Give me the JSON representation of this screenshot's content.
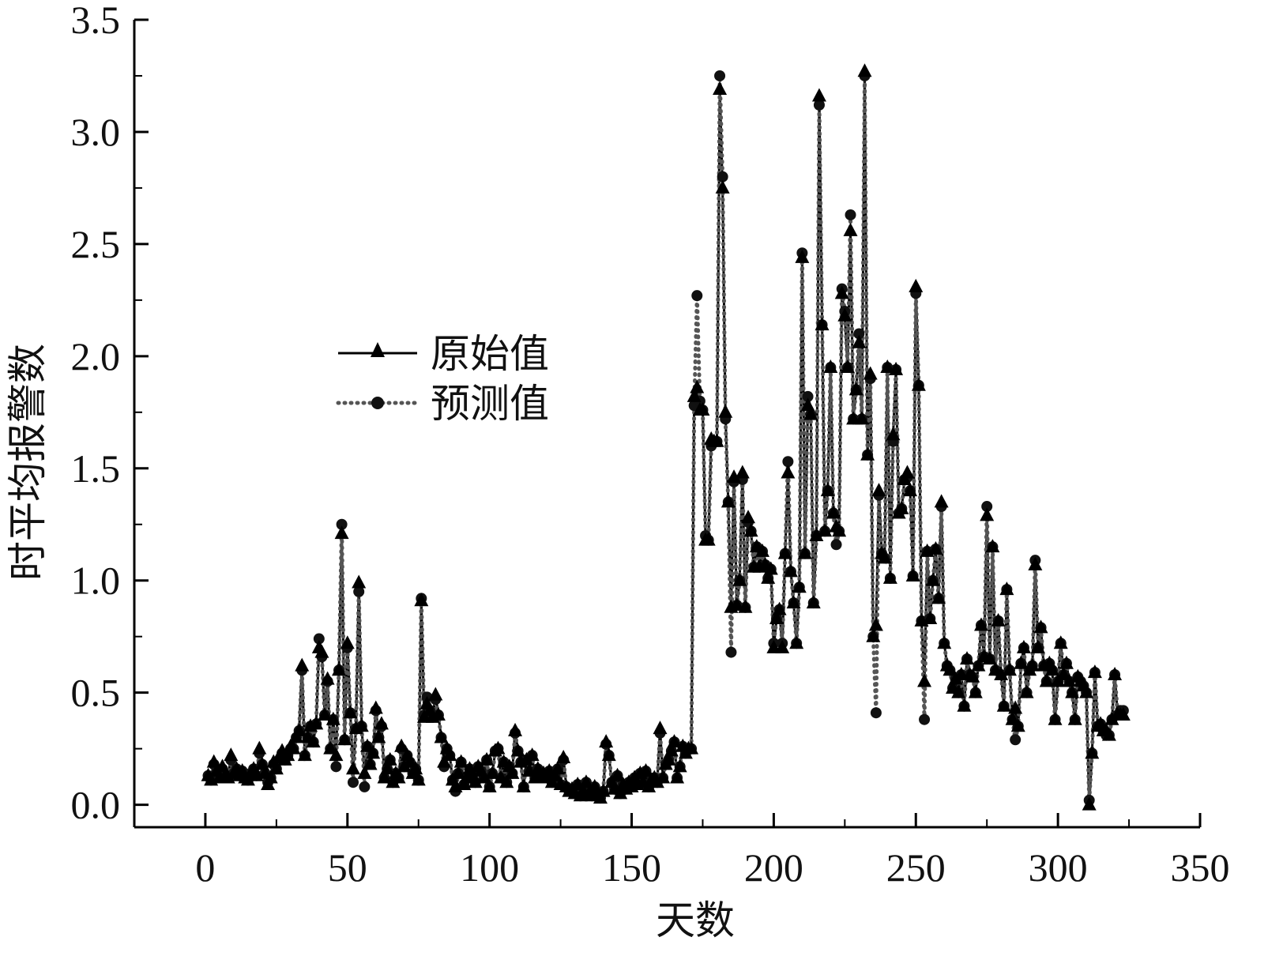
{
  "chart_data": {
    "type": "line",
    "title": "",
    "xlabel": "天数",
    "ylabel": "时平均报警数",
    "xlim": [
      -25,
      350
    ],
    "ylim": [
      -0.1,
      3.5
    ],
    "xticks": [
      0,
      50,
      100,
      150,
      200,
      250,
      300,
      350
    ],
    "xtick_labels": [
      "0",
      "50",
      "100",
      "150",
      "200",
      "250",
      "300",
      "350"
    ],
    "yticks": [
      0,
      0.5,
      1,
      1.5,
      2,
      2.5,
      3,
      3.5
    ],
    "ytick_labels": [
      "0.0",
      "0.5",
      "1.0",
      "1.5",
      "2.0",
      "2.5",
      "3.0",
      "3.5"
    ],
    "grid": false,
    "legend_position": "center-left",
    "colors": {
      "original": "#000000",
      "predicted": "#555555"
    },
    "series": [
      {
        "name": "原始值",
        "style": "solid line, triangle markers",
        "values": [
          0.13,
          0.11,
          0.19,
          0.15,
          0.12,
          0.17,
          0.13,
          0.12,
          0.22,
          0.14,
          0.16,
          0.13,
          0.15,
          0.12,
          0.11,
          0.14,
          0.16,
          0.13,
          0.25,
          0.18,
          0.14,
          0.09,
          0.12,
          0.19,
          0.16,
          0.21,
          0.24,
          0.2,
          0.22,
          0.26,
          0.25,
          0.3,
          0.33,
          0.62,
          0.22,
          0.3,
          0.35,
          0.28,
          0.36,
          0.7,
          0.68,
          0.4,
          0.56,
          0.25,
          0.38,
          0.22,
          0.6,
          1.21,
          0.29,
          0.72,
          0.41,
          0.16,
          0.34,
          0.99,
          0.35,
          0.14,
          0.26,
          0.18,
          0.23,
          0.43,
          0.3,
          0.36,
          0.12,
          0.16,
          0.2,
          0.1,
          0.14,
          0.12,
          0.26,
          0.17,
          0.22,
          0.19,
          0.14,
          0.16,
          0.11,
          0.91,
          0.39,
          0.45,
          0.42,
          0.39,
          0.49,
          0.4,
          0.3,
          0.19,
          0.25,
          0.22,
          0.11,
          0.08,
          0.14,
          0.19,
          0.09,
          0.12,
          0.16,
          0.13,
          0.1,
          0.17,
          0.15,
          0.12,
          0.2,
          0.08,
          0.14,
          0.24,
          0.25,
          0.12,
          0.19,
          0.1,
          0.17,
          0.14,
          0.33,
          0.24,
          0.19,
          0.08,
          0.2,
          0.15,
          0.22,
          0.12,
          0.16,
          0.13,
          0.14,
          0.12,
          0.15,
          0.1,
          0.13,
          0.16,
          0.09,
          0.21,
          0.08,
          0.06,
          0.07,
          0.05,
          0.09,
          0.04,
          0.06,
          0.1,
          0.05,
          0.04,
          0.08,
          0.05,
          0.03,
          0.06,
          0.28,
          0.22,
          0.1,
          0.07,
          0.13,
          0.05,
          0.09,
          0.07,
          0.1,
          0.08,
          0.12,
          0.09,
          0.14,
          0.1,
          0.15,
          0.08,
          0.11,
          0.12,
          0.1,
          0.34,
          0.12,
          0.18,
          0.2,
          0.24,
          0.28,
          0.12,
          0.17,
          0.26,
          0.23,
          0.25,
          0.25,
          1.82,
          1.86,
          1.76,
          1.76,
          1.18,
          1.18,
          1.63,
          1.62,
          1.62,
          3.19,
          2.75,
          1.75,
          1.35,
          0.88,
          1.46,
          0.89,
          1.0,
          1.48,
          0.88,
          1.28,
          1.22,
          1.06,
          1.15,
          1.06,
          1.13,
          1.07,
          1.01,
          1.05,
          0.7,
          0.83,
          0.87,
          0.7,
          1.12,
          1.48,
          1.04,
          0.9,
          0.72,
          0.97,
          2.44,
          1.12,
          1.78,
          1.74,
          0.9,
          1.2,
          3.16,
          2.14,
          1.22,
          1.4,
          1.95,
          1.3,
          1.24,
          1.22,
          2.28,
          2.18,
          1.95,
          2.56,
          1.72,
          1.85,
          2.06,
          1.72,
          3.27,
          1.56,
          1.92,
          0.75,
          0.8,
          1.4,
          1.12,
          1.1,
          1.95,
          1.01,
          1.65,
          1.94,
          1.3,
          1.32,
          1.45,
          1.48,
          1.4,
          1.02,
          2.31,
          1.87,
          0.82,
          0.55,
          1.13,
          0.83,
          1.0,
          1.14,
          0.92,
          1.35,
          0.72,
          0.62,
          0.6,
          0.52,
          0.56,
          0.5,
          0.58,
          0.44,
          0.65,
          0.58,
          0.57,
          0.5,
          0.62,
          0.8,
          0.66,
          1.29,
          0.65,
          1.15,
          0.6,
          0.82,
          0.58,
          0.44,
          0.96,
          0.6,
          0.38,
          0.43,
          0.35,
          0.63,
          0.7,
          0.5,
          0.6,
          0.62,
          1.07,
          0.7,
          0.79,
          0.62,
          0.55,
          0.63,
          0.6,
          0.38,
          0.55,
          0.72,
          0.58,
          0.63,
          0.55,
          0.5,
          0.38,
          0.57,
          0.55,
          0.53,
          0.5,
          0.0,
          0.23,
          0.59,
          0.35,
          0.36,
          0.33,
          0.33,
          0.31,
          0.38,
          0.58,
          0.4,
          0.4,
          0.4
        ]
      },
      {
        "name": "预测值",
        "style": "dotted line, circle markers",
        "values": [
          0.13,
          0.11,
          0.18,
          0.15,
          0.12,
          0.16,
          0.13,
          0.12,
          0.2,
          0.14,
          0.16,
          0.13,
          0.15,
          0.12,
          0.11,
          0.14,
          0.16,
          0.13,
          0.23,
          0.18,
          0.14,
          0.1,
          0.12,
          0.18,
          0.16,
          0.2,
          0.23,
          0.2,
          0.22,
          0.25,
          0.25,
          0.3,
          0.33,
          0.6,
          0.22,
          0.3,
          0.35,
          0.28,
          0.36,
          0.74,
          0.66,
          0.4,
          0.55,
          0.25,
          0.38,
          0.17,
          0.6,
          1.25,
          0.29,
          0.7,
          0.41,
          0.1,
          0.34,
          0.95,
          0.35,
          0.08,
          0.26,
          0.18,
          0.23,
          0.42,
          0.3,
          0.35,
          0.12,
          0.16,
          0.2,
          0.1,
          0.14,
          0.12,
          0.25,
          0.17,
          0.22,
          0.19,
          0.14,
          0.16,
          0.11,
          0.92,
          0.4,
          0.48,
          0.42,
          0.39,
          0.47,
          0.4,
          0.3,
          0.17,
          0.25,
          0.22,
          0.11,
          0.06,
          0.14,
          0.19,
          0.09,
          0.12,
          0.16,
          0.13,
          0.1,
          0.17,
          0.15,
          0.12,
          0.2,
          0.08,
          0.14,
          0.24,
          0.25,
          0.12,
          0.19,
          0.1,
          0.17,
          0.14,
          0.32,
          0.24,
          0.19,
          0.08,
          0.2,
          0.15,
          0.22,
          0.12,
          0.16,
          0.13,
          0.14,
          0.12,
          0.15,
          0.1,
          0.13,
          0.16,
          0.09,
          0.2,
          0.08,
          0.06,
          0.07,
          0.05,
          0.09,
          0.04,
          0.06,
          0.1,
          0.05,
          0.04,
          0.08,
          0.05,
          0.03,
          0.06,
          0.27,
          0.22,
          0.1,
          0.07,
          0.13,
          0.05,
          0.09,
          0.07,
          0.1,
          0.08,
          0.12,
          0.09,
          0.14,
          0.1,
          0.15,
          0.08,
          0.11,
          0.12,
          0.1,
          0.32,
          0.12,
          0.18,
          0.2,
          0.24,
          0.28,
          0.12,
          0.17,
          0.26,
          0.23,
          0.25,
          0.25,
          1.78,
          2.27,
          1.8,
          1.76,
          1.2,
          1.18,
          1.6,
          1.62,
          1.62,
          3.25,
          2.8,
          1.72,
          1.35,
          0.68,
          1.44,
          0.89,
          1.0,
          1.45,
          0.88,
          1.26,
          1.22,
          1.06,
          1.15,
          1.06,
          1.13,
          1.07,
          1.01,
          1.05,
          0.72,
          0.83,
          0.87,
          0.72,
          1.12,
          1.53,
          1.04,
          0.9,
          0.72,
          0.97,
          2.46,
          1.12,
          1.82,
          1.74,
          0.9,
          1.2,
          3.12,
          2.14,
          1.22,
          1.4,
          1.95,
          1.3,
          1.16,
          1.22,
          2.3,
          2.2,
          1.95,
          2.63,
          1.72,
          1.85,
          2.1,
          1.72,
          3.25,
          1.56,
          1.9,
          0.75,
          0.41,
          1.38,
          1.12,
          1.1,
          1.95,
          1.01,
          1.62,
          1.94,
          1.3,
          1.32,
          1.45,
          1.46,
          1.4,
          1.02,
          2.28,
          1.87,
          0.82,
          0.38,
          1.13,
          0.83,
          1.0,
          1.14,
          0.92,
          1.33,
          0.72,
          0.62,
          0.6,
          0.52,
          0.56,
          0.5,
          0.58,
          0.44,
          0.65,
          0.58,
          0.57,
          0.5,
          0.62,
          0.8,
          0.66,
          1.33,
          0.65,
          1.15,
          0.6,
          0.82,
          0.58,
          0.44,
          0.96,
          0.6,
          0.38,
          0.29,
          0.35,
          0.63,
          0.7,
          0.5,
          0.6,
          0.62,
          1.09,
          0.7,
          0.79,
          0.62,
          0.55,
          0.63,
          0.6,
          0.38,
          0.55,
          0.72,
          0.58,
          0.63,
          0.55,
          0.5,
          0.38,
          0.57,
          0.55,
          0.53,
          0.5,
          0.02,
          0.23,
          0.59,
          0.35,
          0.36,
          0.33,
          0.31,
          0.31,
          0.38,
          0.58,
          0.4,
          0.42,
          0.42
        ]
      }
    ]
  }
}
